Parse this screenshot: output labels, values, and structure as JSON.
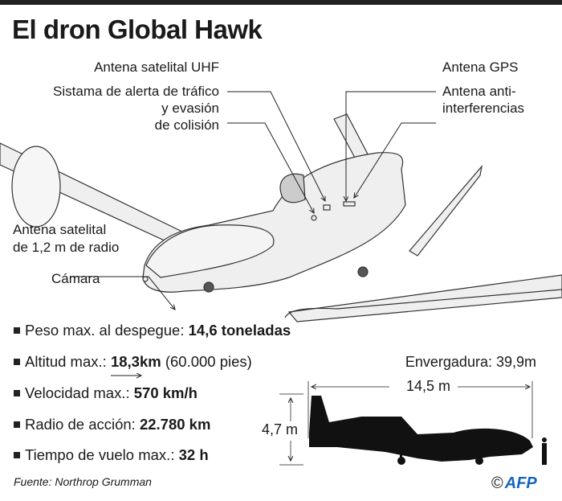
{
  "title": "El dron Global Hawk",
  "callouts": {
    "uhf": "Antena satelital UHF",
    "traffic": [
      "Sistama de alerta de tráfico",
      "y evasión",
      "de colisión"
    ],
    "gps": "Antena GPS",
    "antijam": [
      "Antena anti-",
      "interferencias"
    ],
    "satdish": [
      "Antena satelital",
      "de 1,2 m de radio"
    ],
    "camera": "Cámara"
  },
  "specs": [
    {
      "label": "Peso max. al despegue: ",
      "value": "14,6 toneladas",
      "extra": ""
    },
    {
      "label": "Altitud max.: ",
      "value": "18,3km",
      "extra": " (60.000 pies)"
    },
    {
      "label": "Velocidad max.: ",
      "value": "570 km/h",
      "extra": ""
    },
    {
      "label": "Radio de acción: ",
      "value": "22.780 km",
      "extra": ""
    },
    {
      "label": "Tiempo de vuelo max.: ",
      "value": "32 h",
      "extra": ""
    }
  ],
  "dimensions": {
    "wingspan": "Envergadura: 39,9m",
    "length": "14,5 m",
    "height": "4,7 m"
  },
  "source": "Fuente: Northrop Grumman",
  "credit": {
    "symbol": "©",
    "logo": "AFP",
    "logo_color": "#1565c0"
  }
}
